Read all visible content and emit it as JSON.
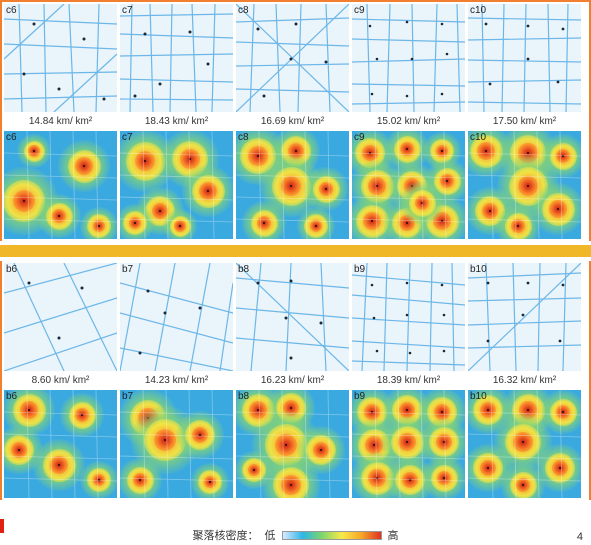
{
  "groupC": {
    "labels": [
      "c6",
      "c7",
      "c8",
      "c9",
      "c10"
    ],
    "captions": [
      "14.84 km/ km²",
      "18.43 km/ km²",
      "16.69 km/ km²",
      "15.02 km/ km²",
      "17.50 km/ km²"
    ],
    "map_bg": "#eaf4fb",
    "line_color": "#6cb7e8",
    "heat_bg": "#3aa9e0",
    "grid_density": [
      14.84,
      18.43,
      16.69,
      15.02,
      17.5
    ],
    "hotspots": [
      [
        [
          20,
          70,
          28
        ],
        [
          80,
          35,
          22
        ],
        [
          55,
          85,
          18
        ],
        [
          95,
          95,
          16
        ],
        [
          30,
          20,
          14
        ]
      ],
      [
        [
          25,
          30,
          26
        ],
        [
          70,
          28,
          24
        ],
        [
          88,
          60,
          22
        ],
        [
          40,
          80,
          20
        ],
        [
          15,
          92,
          16
        ],
        [
          60,
          95,
          14
        ]
      ],
      [
        [
          22,
          25,
          24
        ],
        [
          60,
          20,
          20
        ],
        [
          55,
          55,
          26
        ],
        [
          90,
          58,
          18
        ],
        [
          28,
          92,
          18
        ],
        [
          80,
          95,
          16
        ]
      ],
      [
        [
          18,
          22,
          20
        ],
        [
          55,
          18,
          18
        ],
        [
          90,
          20,
          16
        ],
        [
          25,
          55,
          22
        ],
        [
          60,
          55,
          20
        ],
        [
          95,
          50,
          18
        ],
        [
          20,
          90,
          22
        ],
        [
          55,
          92,
          20
        ],
        [
          90,
          90,
          22
        ],
        [
          70,
          72,
          18
        ]
      ],
      [
        [
          18,
          20,
          22
        ],
        [
          60,
          22,
          24
        ],
        [
          95,
          25,
          18
        ],
        [
          60,
          55,
          26
        ],
        [
          22,
          80,
          20
        ],
        [
          90,
          78,
          22
        ],
        [
          50,
          95,
          18
        ]
      ]
    ]
  },
  "groupB": {
    "labels": [
      "b6",
      "b7",
      "b8",
      "b9",
      "b10"
    ],
    "captions": [
      "8.60 km/ km²",
      "14.23 km/ km²",
      "16.23 km/ km²",
      "18.39 km/ km²",
      "16.32 km/ km²"
    ],
    "map_bg": "#eaf4fb",
    "line_color": "#6cb7e8",
    "heat_bg": "#3aa9e0",
    "grid_density": [
      8.6,
      14.23,
      16.23,
      18.39,
      16.32
    ],
    "hotspots": [
      [
        [
          25,
          20,
          22
        ],
        [
          78,
          25,
          18
        ],
        [
          15,
          60,
          20
        ],
        [
          55,
          75,
          22
        ],
        [
          95,
          90,
          16
        ]
      ],
      [
        [
          28,
          28,
          24
        ],
        [
          45,
          50,
          28
        ],
        [
          80,
          45,
          20
        ],
        [
          20,
          90,
          18
        ],
        [
          90,
          92,
          16
        ]
      ],
      [
        [
          22,
          20,
          22
        ],
        [
          55,
          18,
          20
        ],
        [
          50,
          55,
          28
        ],
        [
          85,
          60,
          20
        ],
        [
          55,
          95,
          24
        ],
        [
          18,
          80,
          16
        ]
      ],
      [
        [
          20,
          22,
          20
        ],
        [
          55,
          20,
          20
        ],
        [
          90,
          22,
          20
        ],
        [
          22,
          55,
          22
        ],
        [
          55,
          52,
          22
        ],
        [
          92,
          52,
          20
        ],
        [
          25,
          88,
          22
        ],
        [
          58,
          90,
          20
        ],
        [
          92,
          88,
          18
        ]
      ],
      [
        [
          20,
          20,
          20
        ],
        [
          60,
          20,
          22
        ],
        [
          95,
          22,
          18
        ],
        [
          55,
          52,
          24
        ],
        [
          20,
          78,
          20
        ],
        [
          92,
          78,
          20
        ],
        [
          55,
          95,
          18
        ]
      ]
    ]
  },
  "legend": {
    "title": "聚落核密度：",
    "low": "低",
    "high": "高",
    "gradient": [
      "#d9e9ff",
      "#2cb6e8",
      "#7dd66a",
      "#f9e94a",
      "#f6a628",
      "#e03020"
    ]
  },
  "page_number": "4",
  "colors": {
    "border": "#f08030",
    "separator": "#f0b828",
    "text": "#333333"
  },
  "panel_size": {
    "w": 113,
    "h": 108
  }
}
